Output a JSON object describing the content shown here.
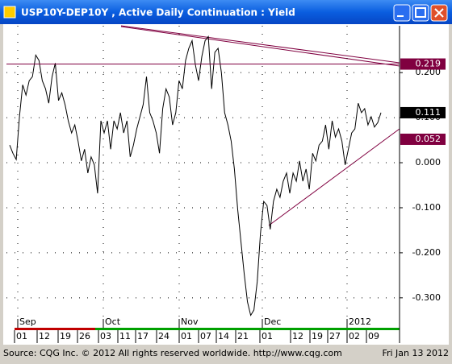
{
  "window_title": "USP10Y-DEP10Y , Active Daily Continuation : Yield",
  "footer": {
    "source": "Source: CQG Inc. © 2012 All rights reserved worldwide. http://www.cqg.com",
    "date": "Fri Jan 13 2012"
  },
  "chart_data": {
    "type": "line",
    "series": [
      {
        "name": "USP10Y-DEP10Y",
        "color": "#000000",
        "values": [
          0.039,
          0.021,
          0.007,
          0.102,
          0.173,
          0.15,
          0.182,
          0.191,
          0.239,
          0.227,
          0.182,
          0.164,
          0.132,
          0.191,
          0.221,
          0.138,
          0.155,
          0.129,
          0.093,
          0.066,
          0.084,
          0.048,
          0.004,
          0.03,
          -0.023,
          0.013,
          -0.005,
          -0.068,
          0.093,
          0.066,
          0.093,
          0.03,
          0.093,
          0.075,
          0.111,
          0.066,
          0.093,
          0.013,
          0.039,
          0.075,
          0.102,
          0.129,
          0.191,
          0.111,
          0.093,
          0.066,
          0.021,
          0.12,
          0.164,
          0.146,
          0.084,
          0.111,
          0.182,
          0.164,
          0.227,
          0.254,
          0.271,
          0.218,
          0.182,
          0.236,
          0.271,
          0.28,
          0.164,
          0.245,
          0.254,
          0.2,
          0.111,
          0.084,
          0.048,
          -0.014,
          -0.104,
          -0.175,
          -0.246,
          -0.309,
          -0.339,
          -0.327,
          -0.264,
          -0.157,
          -0.086,
          -0.095,
          -0.148,
          -0.086,
          -0.059,
          -0.077,
          -0.041,
          -0.023,
          -0.068,
          -0.023,
          -0.041,
          0.004,
          -0.041,
          -0.014,
          -0.059,
          0.021,
          0.004,
          0.039,
          0.048,
          0.084,
          0.03,
          0.093,
          0.057,
          0.075,
          0.048,
          -0.005,
          0.03,
          0.066,
          0.075,
          0.132,
          0.111,
          0.12,
          0.084,
          0.102,
          0.079,
          0.089,
          0.111
        ]
      }
    ],
    "ylim": [
      -0.345,
      0.304
    ],
    "yticks": [
      {
        "value": 0.2,
        "label": "0.200"
      },
      {
        "value": 0.1,
        "label": "0.100"
      },
      {
        "value": 0,
        "label": "0.000"
      },
      {
        "value": -0.1,
        "label": "-0.100"
      },
      {
        "value": -0.2,
        "label": "-0.200"
      },
      {
        "value": -0.3,
        "label": "-0.300"
      }
    ],
    "level_labels": [
      {
        "value": 0.219,
        "label": "0.219",
        "color": "#800040"
      },
      {
        "value": 0.111,
        "label": "0.111",
        "color": "#000000"
      },
      {
        "value": 0.052,
        "label": "0.052",
        "color": "#800040"
      }
    ],
    "months": [
      "Sep",
      "Oct",
      "Nov",
      "Dec",
      "2012"
    ],
    "days": [
      "01",
      "12",
      "19",
      "26",
      "03",
      "11",
      "17",
      "24",
      "01",
      "07",
      "14",
      "21",
      "01",
      "12",
      "19",
      "27",
      "02",
      "09"
    ],
    "grid": true
  }
}
